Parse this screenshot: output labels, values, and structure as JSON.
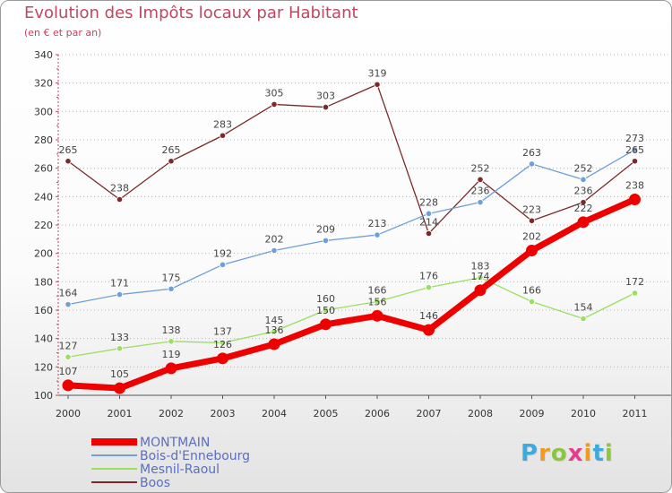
{
  "chart_data": {
    "type": "line",
    "title": "Evolution des Impôts locaux par Habitant",
    "subtitle": "(en € et par an)",
    "xlabel": "",
    "ylabel": "",
    "ylim": [
      100,
      340
    ],
    "yticks": [
      100,
      120,
      140,
      160,
      180,
      200,
      220,
      240,
      260,
      280,
      300,
      320,
      340
    ],
    "x": [
      "2000",
      "2001",
      "2002",
      "2003",
      "2004",
      "2005",
      "2006",
      "2007",
      "2008",
      "2009",
      "2010",
      "2011"
    ],
    "legend_position": "bottom-left",
    "series": [
      {
        "name": "MONTMAIN",
        "color": "#ee0000",
        "values": [
          107,
          105,
          119,
          126,
          136,
          150,
          156,
          146,
          174,
          202,
          222,
          238
        ]
      },
      {
        "name": "Bois-d'Ennebourg",
        "color": "#6e9fd6",
        "values": [
          164,
          171,
          175,
          192,
          202,
          209,
          213,
          228,
          236,
          263,
          252,
          273
        ]
      },
      {
        "name": "Mesnil-Raoul",
        "color": "#99e060",
        "values": [
          127,
          133,
          138,
          137,
          145,
          160,
          166,
          176,
          183,
          166,
          154,
          172
        ]
      },
      {
        "name": "Boos",
        "color": "#7a2a2a",
        "values": [
          265,
          238,
          265,
          283,
          305,
          303,
          319,
          214,
          252,
          223,
          236,
          265
        ]
      }
    ]
  },
  "branding": {
    "logo_text": "Proxiti",
    "logo_colors": [
      "#3fa9dc",
      "#f29a1c",
      "#8cc63f",
      "#e63c8c",
      "#f29a1c",
      "#3fa9dc",
      "#8cc63f"
    ]
  }
}
